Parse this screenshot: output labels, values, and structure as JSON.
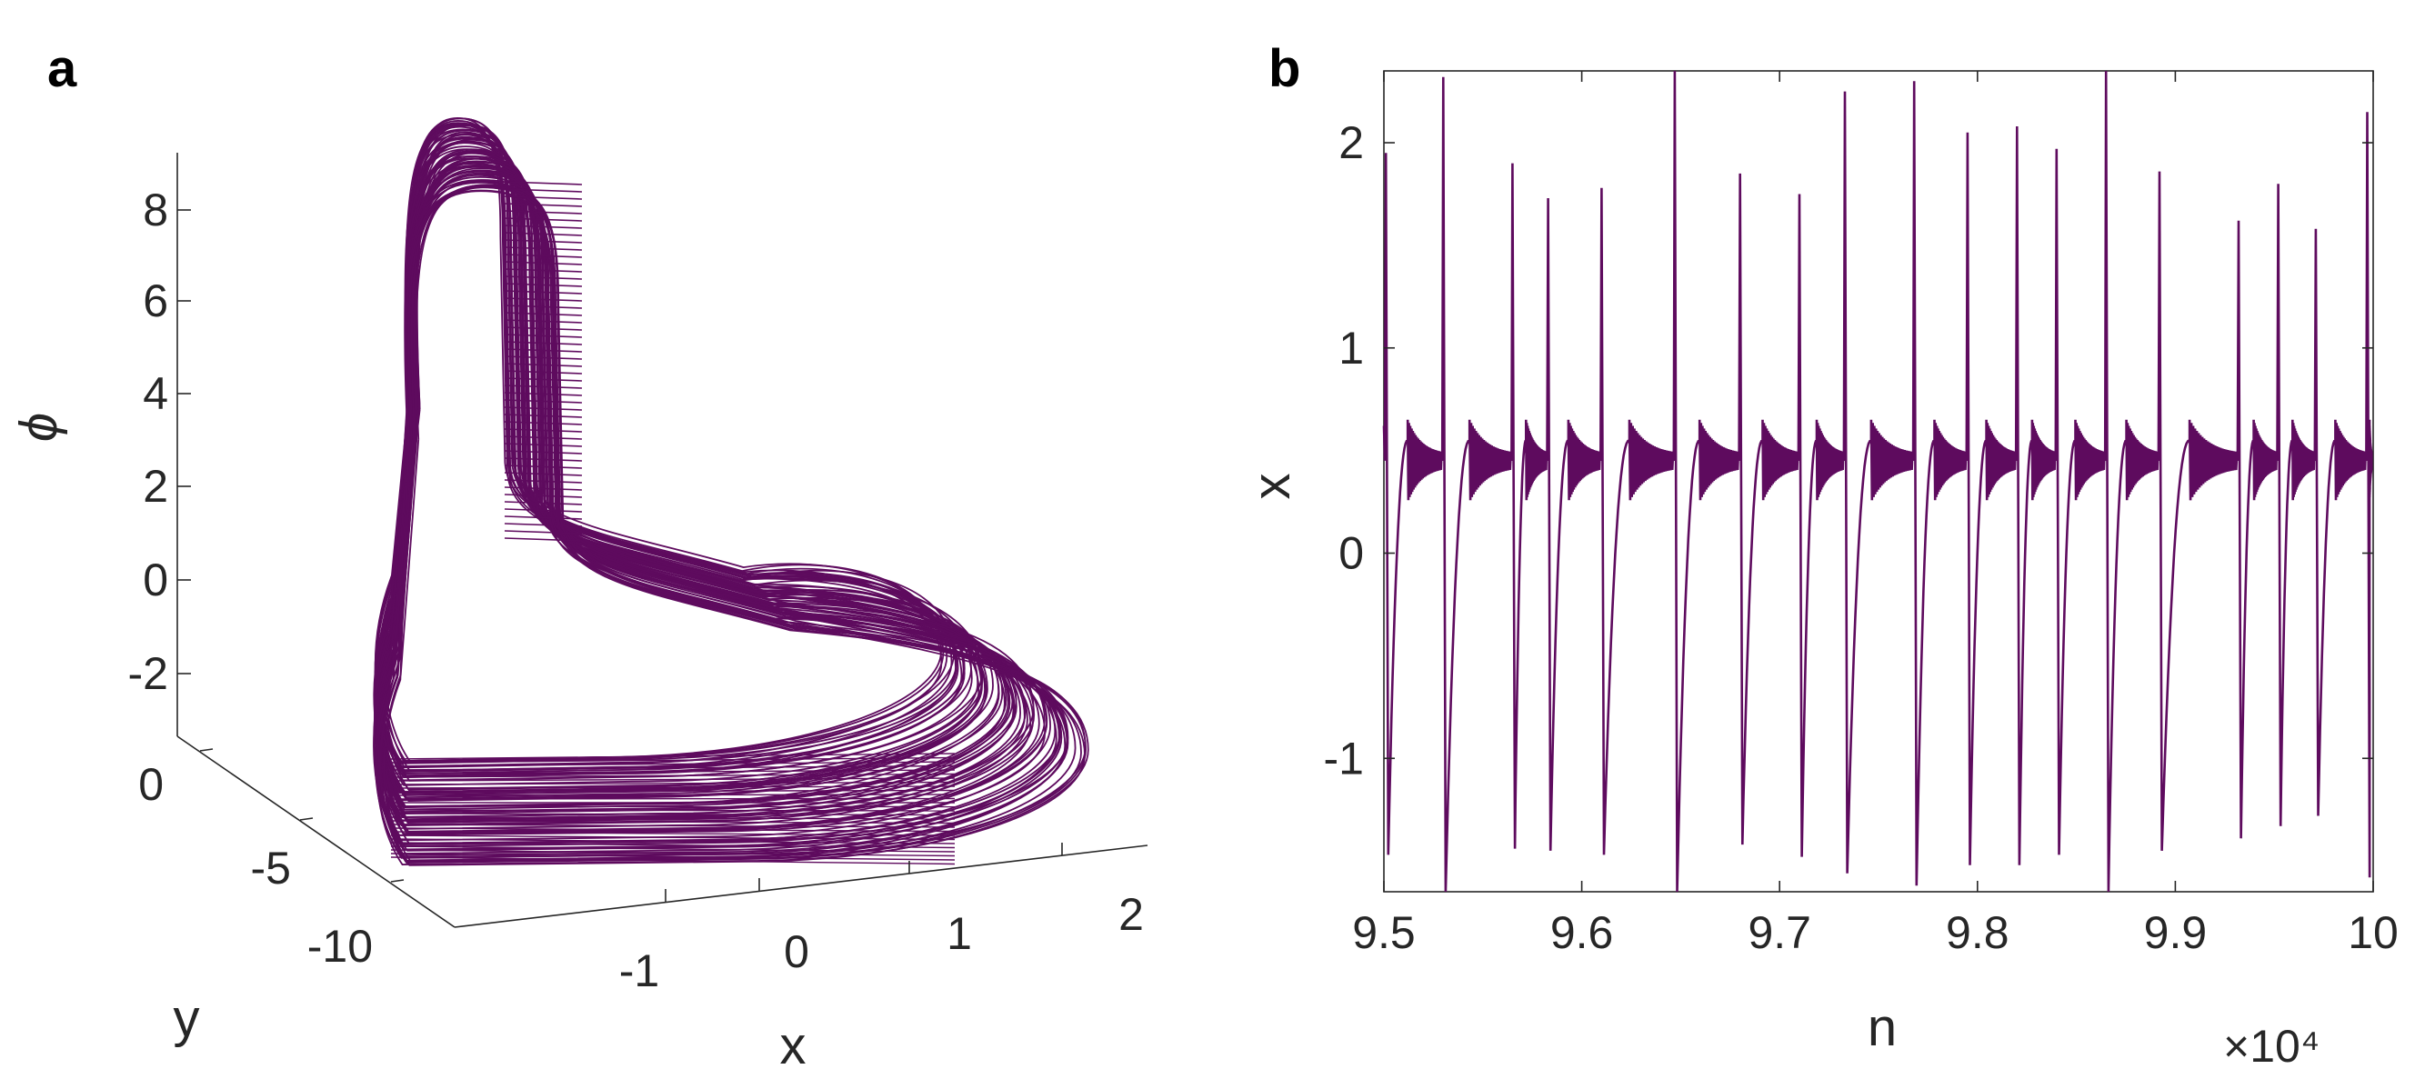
{
  "colors": {
    "trace": "#5e0b5e",
    "axis": "#262626",
    "background": "#ffffff"
  },
  "chart_data": [
    {
      "panel": "a",
      "type": "line",
      "projection": "3d",
      "title": "",
      "xlabel": "x",
      "ylabel": "y",
      "zlabel": "ϕ",
      "xticks": [
        "-1",
        "0",
        "1",
        "2"
      ],
      "yticks": [
        "0",
        "-5",
        "-10"
      ],
      "zticks": [
        "8",
        "6",
        "4",
        "2",
        "0",
        "-2"
      ],
      "xlim": [
        -2,
        2.5
      ],
      "ylim": [
        -12,
        0
      ],
      "zlim": [
        -3.5,
        9.5
      ],
      "grid": false,
      "series": [
        {
          "x": [
            -0.8,
            -0.8,
            2.1,
            1.6,
            -0.4,
            0.1,
            0.1,
            0.15,
            -0.8,
            -0.8
          ],
          "y": [
            -10,
            -10,
            -10,
            -0.6,
            -0.6,
            -0.6,
            -0.6,
            -0.6,
            -0.6,
            -10
          ],
          "z": [
            8.5,
            -3.2,
            -3.2,
            -3.2,
            -3.2,
            1.0,
            8.5,
            9.0,
            9.0,
            8.5
          ]
        }
      ]
    },
    {
      "panel": "b",
      "type": "line",
      "title": "",
      "xlabel": "n",
      "ylabel": "x",
      "xticks": [
        "9.5",
        "9.6",
        "9.7",
        "9.8",
        "9.9",
        "10"
      ],
      "yticks": [
        "2",
        "1",
        "0",
        "-1"
      ],
      "x_exponent": "×10⁴",
      "xlim": [
        9.5,
        10
      ],
      "ylim": [
        -1.65,
        2.35
      ],
      "grid": false,
      "spike_times": [
        9.501,
        9.53,
        9.565,
        9.583,
        9.61,
        9.647,
        9.68,
        9.71,
        9.733,
        9.768,
        9.795,
        9.82,
        9.84,
        9.865,
        9.892,
        9.932,
        9.952,
        9.971,
        9.997
      ],
      "spike_peaks": [
        1.95,
        2.32,
        1.9,
        1.73,
        1.78,
        2.35,
        1.85,
        1.75,
        2.25,
        2.3,
        2.05,
        2.08,
        1.97,
        2.35,
        1.86,
        1.62,
        1.8,
        1.58,
        2.15
      ],
      "spike_minimums": [
        -1.47,
        -1.65,
        -1.44,
        -1.45,
        -1.47,
        -1.65,
        -1.42,
        -1.48,
        -1.56,
        -1.62,
        -1.52,
        -1.52,
        -1.47,
        -1.65,
        -1.45,
        -1.39,
        -1.33,
        -1.28,
        -1.58
      ],
      "plateau_level": 0.45,
      "plateau_oscillation_amplitude": 0.17
    }
  ],
  "labels": {
    "panel_a": "a",
    "panel_b": "b"
  }
}
